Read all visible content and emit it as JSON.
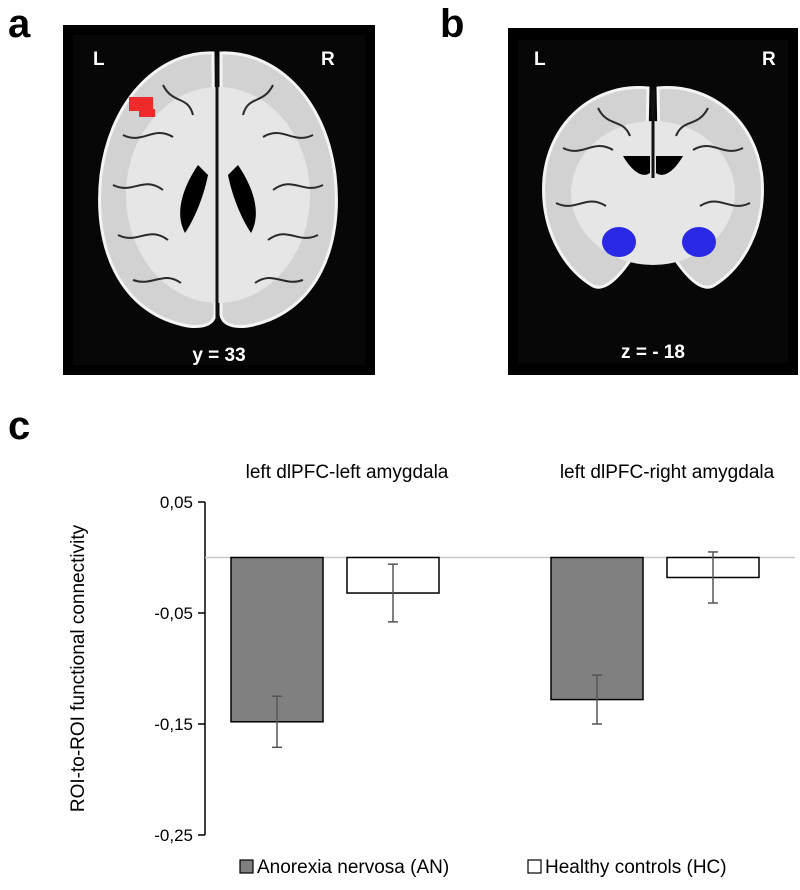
{
  "panels": {
    "a": {
      "letter": "a",
      "left_label": "L",
      "right_label": "R",
      "slice_label": "y = 33",
      "highlight_color": "#ee2a2a"
    },
    "b": {
      "letter": "b",
      "left_label": "L",
      "right_label": "R",
      "slice_label": "z = - 18",
      "highlight_color": "#2a2ae6"
    },
    "c": {
      "letter": "c"
    }
  },
  "chart_data": {
    "type": "bar",
    "title": "",
    "categories": [
      "left dlPFC-left amygdala",
      "left dlPFC-right amygdala"
    ],
    "series": [
      {
        "name": "Anorexia nervosa (AN)",
        "values": [
          -0.148,
          -0.128
        ],
        "errors": [
          0.023,
          0.022
        ],
        "color": "#808080"
      },
      {
        "name": "Healthy controls (HC)",
        "values": [
          -0.032,
          -0.018
        ],
        "errors": [
          0.026,
          0.023
        ],
        "color": "#ffffff"
      }
    ],
    "xlabel": "",
    "ylabel": "ROI-to-ROI functional connectivity",
    "ylim": [
      -0.25,
      0.05
    ],
    "yticks": [
      0.05,
      -0.05,
      -0.15,
      -0.25
    ],
    "ytick_labels": [
      "0,05",
      "-0,05",
      "-0,15",
      "-0,25"
    ],
    "legend": "bottom",
    "grid": false
  }
}
